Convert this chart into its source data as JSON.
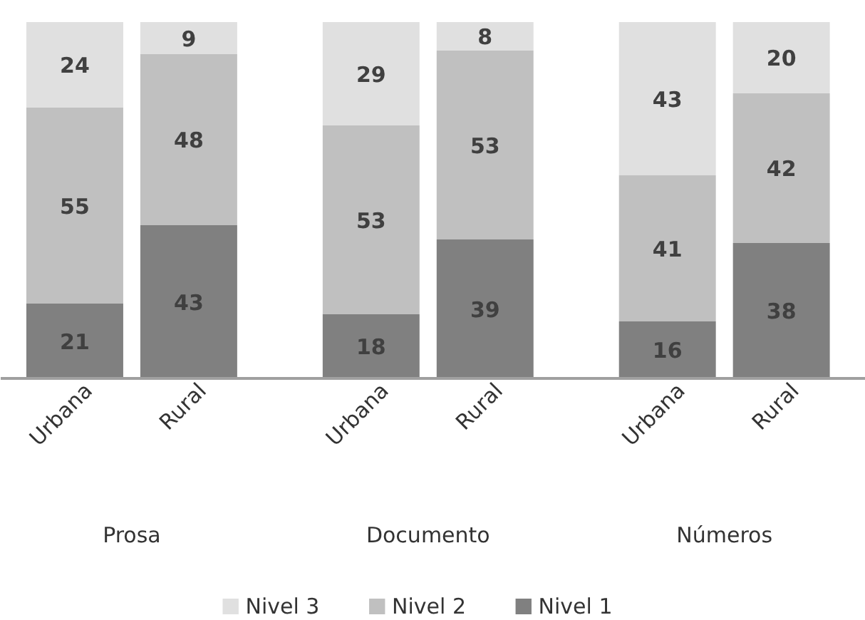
{
  "chart_data": {
    "type": "bar",
    "stacked": true,
    "data_labels": true,
    "legend": "bottom",
    "grid": false,
    "categories": [
      "Urbana",
      "Rural",
      "Urbana",
      "Rural",
      "Urbana",
      "Rural"
    ],
    "annotations": [
      "Prosa",
      "Documento",
      "Números"
    ],
    "series": [
      {
        "name": "Nivel 1",
        "color": "#808080",
        "values": [
          21,
          43,
          18,
          39,
          16,
          38
        ]
      },
      {
        "name": "Nivel 2",
        "color": "#c0c0c0",
        "values": [
          55,
          48,
          53,
          53,
          41,
          42
        ]
      },
      {
        "name": "Nivel 3",
        "color": "#e0e0e0",
        "values": [
          24,
          9,
          29,
          8,
          43,
          20
        ]
      }
    ]
  }
}
